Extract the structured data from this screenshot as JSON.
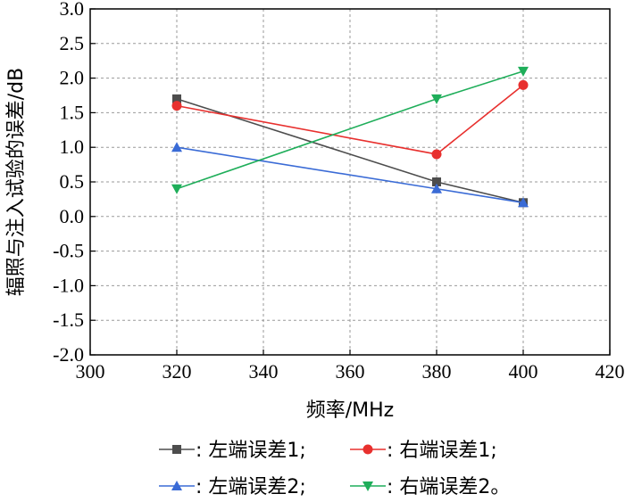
{
  "chart_data": {
    "type": "line",
    "xlabel": "频率/MHz",
    "ylabel": "辐照与注入试验的误差/dB",
    "xlim": [
      300,
      420
    ],
    "ylim": [
      -2.0,
      3.0
    ],
    "xticks": [
      "300",
      "320",
      "340",
      "360",
      "380",
      "400",
      "420"
    ],
    "yticks": [
      "-2.0",
      "-1.5",
      "-1.0",
      "-0.5",
      "0.0",
      "0.5",
      "1.0",
      "1.5",
      "2.0",
      "2.5",
      "3.0"
    ],
    "grid": true,
    "legend_position": "bottom",
    "series": [
      {
        "name": ": 左端误差1;",
        "color": "#4d4d4d",
        "marker": "square",
        "x": [
          320,
          380,
          400
        ],
        "y": [
          1.7,
          0.5,
          0.2
        ]
      },
      {
        "name": ": 右端误差1;",
        "color": "#e8302e",
        "marker": "circle",
        "x": [
          320,
          380,
          400
        ],
        "y": [
          1.6,
          0.9,
          1.9
        ]
      },
      {
        "name": ": 左端误差2;",
        "color": "#3a6bd6",
        "marker": "triangle-up",
        "x": [
          320,
          380,
          400
        ],
        "y": [
          1.0,
          0.4,
          0.2
        ]
      },
      {
        "name": ": 右端误差2。",
        "color": "#1fae5a",
        "marker": "triangle-down",
        "x": [
          320,
          380,
          400
        ],
        "y": [
          0.4,
          1.7,
          2.1
        ]
      }
    ]
  }
}
